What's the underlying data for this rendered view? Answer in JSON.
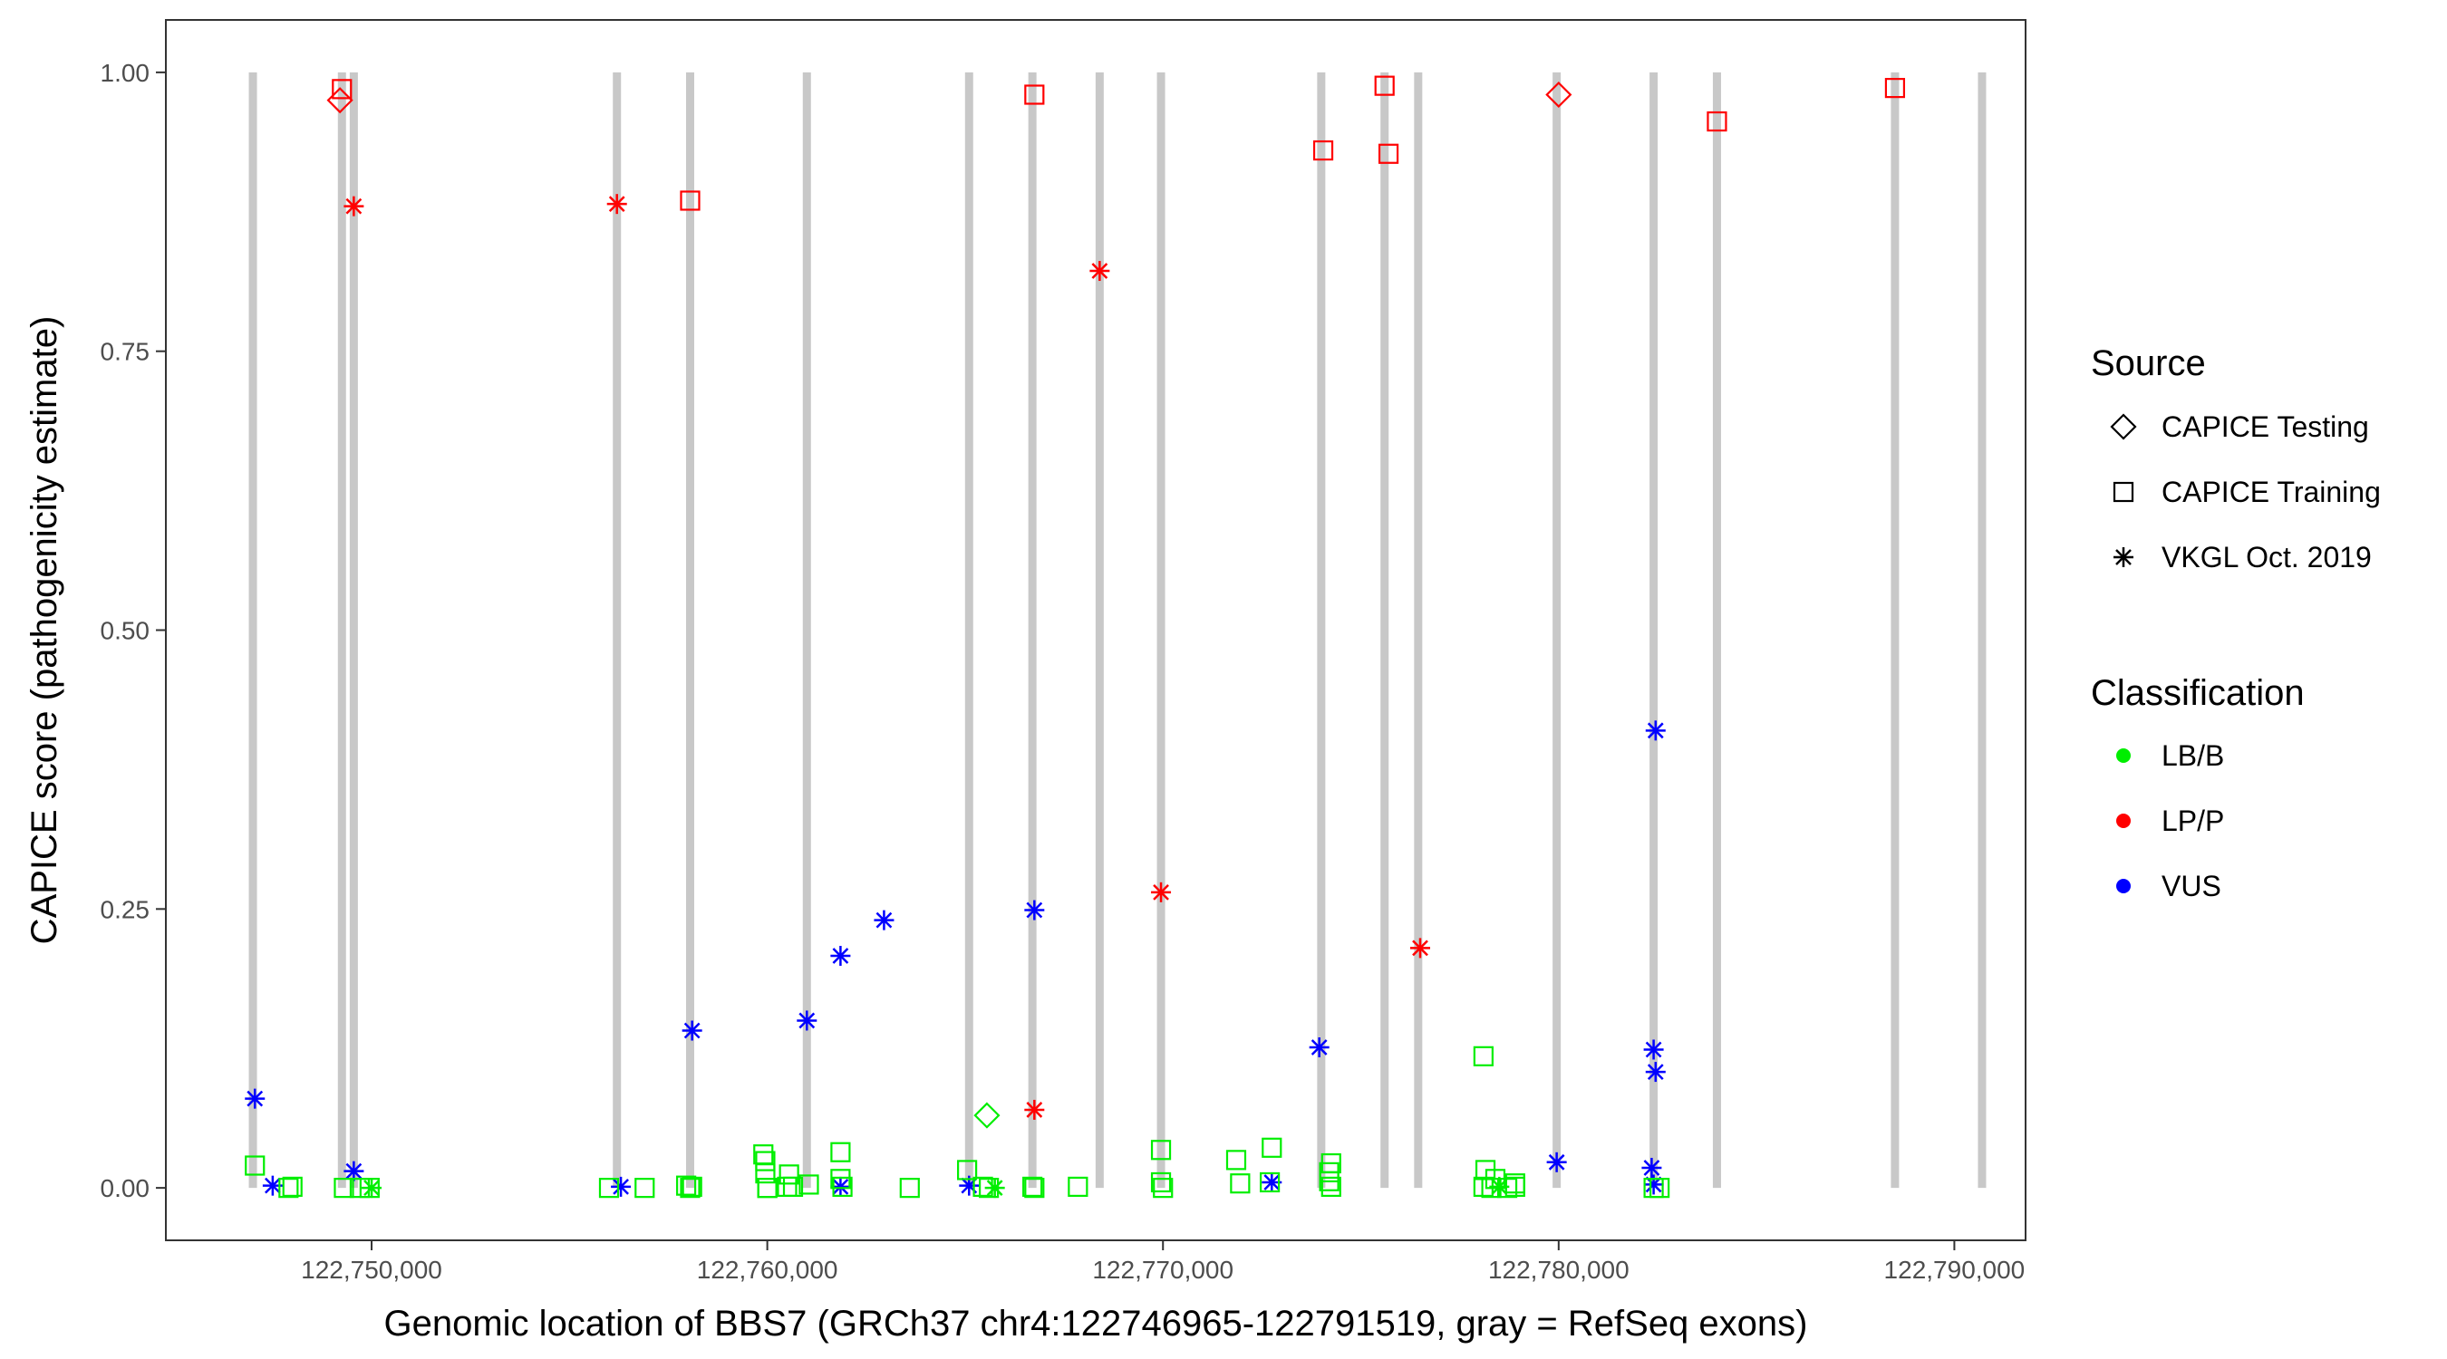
{
  "chart_data": {
    "type": "scatter",
    "xlabel": "Genomic location of BBS7 (GRCh37 chr4:122746965-122791519, gray = RefSeq exons)",
    "ylabel": "CAPICE score (pathogenicity estimate)",
    "xlim": [
      122744800,
      122791800
    ],
    "ylim": [
      -0.047,
      1.047
    ],
    "x_ticks": [
      {
        "value": 122750000,
        "label": "122,750,000"
      },
      {
        "value": 122760000,
        "label": "122,760,000"
      },
      {
        "value": 122770000,
        "label": "122,770,000"
      },
      {
        "value": 122780000,
        "label": "122,780,000"
      },
      {
        "value": 122790000,
        "label": "122,790,000"
      }
    ],
    "y_ticks": [
      {
        "value": 0.0,
        "label": "0.00"
      },
      {
        "value": 0.25,
        "label": "0.25"
      },
      {
        "value": 0.5,
        "label": "0.50"
      },
      {
        "value": 0.75,
        "label": "0.75"
      },
      {
        "value": 1.0,
        "label": "1.00"
      }
    ],
    "exons": [
      122747000,
      122749250,
      122749550,
      122756200,
      122758050,
      122761000,
      122765100,
      122766700,
      122768400,
      122769950,
      122774000,
      122775600,
      122776450,
      122779950,
      122782400,
      122784000,
      122788500,
      122790700
    ],
    "grid": false,
    "legend_position": "right",
    "legends": [
      {
        "title": "Source",
        "items": [
          {
            "label": "CAPICE Testing",
            "shape": "diamond"
          },
          {
            "label": "CAPICE Training",
            "shape": "square"
          },
          {
            "label": "VKGL Oct. 2019",
            "shape": "asterisk"
          }
        ]
      },
      {
        "title": "Classification",
        "items": [
          {
            "label": "LB/B",
            "color": "#00ee00"
          },
          {
            "label": "LP/P",
            "color": "#ff0000"
          },
          {
            "label": "VUS",
            "color": "#0000ff"
          }
        ]
      }
    ],
    "colors": {
      "LB/B": "#00ee00",
      "LP/P": "#ff0000",
      "VUS": "#0000ff",
      "exon": "#c8c8c8"
    },
    "points": [
      {
        "x": 122749250,
        "y": 0.985,
        "source": "CAPICE Training",
        "class": "LP/P"
      },
      {
        "x": 122749200,
        "y": 0.975,
        "source": "CAPICE Testing",
        "class": "LP/P"
      },
      {
        "x": 122749550,
        "y": 0.88,
        "source": "VKGL Oct. 2019",
        "class": "LP/P"
      },
      {
        "x": 122756200,
        "y": 0.882,
        "source": "VKGL Oct. 2019",
        "class": "LP/P"
      },
      {
        "x": 122758050,
        "y": 0.885,
        "source": "CAPICE Training",
        "class": "LP/P"
      },
      {
        "x": 122766750,
        "y": 0.98,
        "source": "CAPICE Training",
        "class": "LP/P"
      },
      {
        "x": 122768400,
        "y": 0.822,
        "source": "VKGL Oct. 2019",
        "class": "LP/P"
      },
      {
        "x": 122774050,
        "y": 0.93,
        "source": "CAPICE Training",
        "class": "LP/P"
      },
      {
        "x": 122775600,
        "y": 0.988,
        "source": "CAPICE Training",
        "class": "LP/P"
      },
      {
        "x": 122775700,
        "y": 0.927,
        "source": "CAPICE Training",
        "class": "LP/P"
      },
      {
        "x": 122780000,
        "y": 0.98,
        "source": "CAPICE Testing",
        "class": "LP/P"
      },
      {
        "x": 122784000,
        "y": 0.956,
        "source": "CAPICE Training",
        "class": "LP/P"
      },
      {
        "x": 122788500,
        "y": 0.986,
        "source": "CAPICE Training",
        "class": "LP/P"
      },
      {
        "x": 122769950,
        "y": 0.265,
        "source": "VKGL Oct. 2019",
        "class": "LP/P"
      },
      {
        "x": 122776500,
        "y": 0.215,
        "source": "VKGL Oct. 2019",
        "class": "LP/P"
      },
      {
        "x": 122766750,
        "y": 0.07,
        "source": "VKGL Oct. 2019",
        "class": "LP/P"
      },
      {
        "x": 122782450,
        "y": 0.41,
        "source": "VKGL Oct. 2019",
        "class": "VUS"
      },
      {
        "x": 122762950,
        "y": 0.24,
        "source": "VKGL Oct. 2019",
        "class": "VUS"
      },
      {
        "x": 122766750,
        "y": 0.249,
        "source": "VKGL Oct. 2019",
        "class": "VUS"
      },
      {
        "x": 122761850,
        "y": 0.208,
        "source": "VKGL Oct. 2019",
        "class": "VUS"
      },
      {
        "x": 122761000,
        "y": 0.15,
        "source": "VKGL Oct. 2019",
        "class": "VUS"
      },
      {
        "x": 122758100,
        "y": 0.141,
        "source": "VKGL Oct. 2019",
        "class": "VUS"
      },
      {
        "x": 122773950,
        "y": 0.126,
        "source": "VKGL Oct. 2019",
        "class": "VUS"
      },
      {
        "x": 122782400,
        "y": 0.124,
        "source": "VKGL Oct. 2019",
        "class": "VUS"
      },
      {
        "x": 122782450,
        "y": 0.104,
        "source": "VKGL Oct. 2019",
        "class": "VUS"
      },
      {
        "x": 122747050,
        "y": 0.08,
        "source": "VKGL Oct. 2019",
        "class": "VUS"
      },
      {
        "x": 122749550,
        "y": 0.015,
        "source": "VKGL Oct. 2019",
        "class": "VUS"
      },
      {
        "x": 122747500,
        "y": 0.002,
        "source": "VKGL Oct. 2019",
        "class": "VUS"
      },
      {
        "x": 122756300,
        "y": 0.001,
        "source": "VKGL Oct. 2019",
        "class": "VUS"
      },
      {
        "x": 122761850,
        "y": 0.001,
        "source": "VKGL Oct. 2019",
        "class": "VUS"
      },
      {
        "x": 122765100,
        "y": 0.002,
        "source": "VKGL Oct. 2019",
        "class": "VUS"
      },
      {
        "x": 122772750,
        "y": 0.005,
        "source": "VKGL Oct. 2019",
        "class": "VUS"
      },
      {
        "x": 122779950,
        "y": 0.023,
        "source": "VKGL Oct. 2019",
        "class": "VUS"
      },
      {
        "x": 122782350,
        "y": 0.018,
        "source": "VKGL Oct. 2019",
        "class": "VUS"
      },
      {
        "x": 122782400,
        "y": 0.003,
        "source": "VKGL Oct. 2019",
        "class": "VUS"
      },
      {
        "x": 122778100,
        "y": 0.118,
        "source": "CAPICE Training",
        "class": "LB/B"
      },
      {
        "x": 122765550,
        "y": 0.065,
        "source": "CAPICE Testing",
        "class": "LB/B"
      },
      {
        "x": 122747050,
        "y": 0.02,
        "source": "CAPICE Training",
        "class": "LB/B"
      },
      {
        "x": 122747900,
        "y": 0.0,
        "source": "CAPICE Training",
        "class": "LB/B"
      },
      {
        "x": 122748000,
        "y": 0.001,
        "source": "CAPICE Training",
        "class": "LB/B"
      },
      {
        "x": 122749300,
        "y": 0.0,
        "source": "CAPICE Training",
        "class": "LB/B"
      },
      {
        "x": 122749700,
        "y": 0.0,
        "source": "CAPICE Training",
        "class": "LB/B"
      },
      {
        "x": 122750000,
        "y": 0.0,
        "source": "VKGL Oct. 2019",
        "class": "LB/B"
      },
      {
        "x": 122749950,
        "y": 0.0,
        "source": "CAPICE Training",
        "class": "LB/B"
      },
      {
        "x": 122756000,
        "y": 0.0,
        "source": "CAPICE Training",
        "class": "LB/B"
      },
      {
        "x": 122756900,
        "y": 0.0,
        "source": "CAPICE Training",
        "class": "LB/B"
      },
      {
        "x": 122757950,
        "y": 0.002,
        "source": "CAPICE Training",
        "class": "LB/B"
      },
      {
        "x": 122758050,
        "y": 0.0,
        "source": "CAPICE Training",
        "class": "LB/B"
      },
      {
        "x": 122758100,
        "y": 0.001,
        "source": "CAPICE Training",
        "class": "LB/B"
      },
      {
        "x": 122760000,
        "y": 0.0,
        "source": "CAPICE Training",
        "class": "LB/B"
      },
      {
        "x": 122759900,
        "y": 0.03,
        "source": "CAPICE Training",
        "class": "LB/B"
      },
      {
        "x": 122759950,
        "y": 0.024,
        "source": "CAPICE Training",
        "class": "LB/B"
      },
      {
        "x": 122759950,
        "y": 0.013,
        "source": "CAPICE Training",
        "class": "LB/B"
      },
      {
        "x": 122760000,
        "y": 0.0,
        "source": "CAPICE Training",
        "class": "LB/B"
      },
      {
        "x": 122760550,
        "y": 0.012,
        "source": "CAPICE Training",
        "class": "LB/B"
      },
      {
        "x": 122760500,
        "y": 0.001,
        "source": "CAPICE Training",
        "class": "LB/B"
      },
      {
        "x": 122760650,
        "y": 0.001,
        "source": "CAPICE Training",
        "class": "LB/B"
      },
      {
        "x": 122761050,
        "y": 0.003,
        "source": "CAPICE Training",
        "class": "LB/B"
      },
      {
        "x": 122761850,
        "y": 0.032,
        "source": "CAPICE Training",
        "class": "LB/B"
      },
      {
        "x": 122761850,
        "y": 0.008,
        "source": "CAPICE Training",
        "class": "LB/B"
      },
      {
        "x": 122761900,
        "y": 0.001,
        "source": "CAPICE Training",
        "class": "LB/B"
      },
      {
        "x": 122763600,
        "y": 0.0,
        "source": "CAPICE Training",
        "class": "LB/B"
      },
      {
        "x": 122765050,
        "y": 0.016,
        "source": "CAPICE Training",
        "class": "LB/B"
      },
      {
        "x": 122765450,
        "y": 0.001,
        "source": "CAPICE Training",
        "class": "LB/B"
      },
      {
        "x": 122765600,
        "y": 0.0,
        "source": "CAPICE Training",
        "class": "LB/B"
      },
      {
        "x": 122765750,
        "y": 0.0,
        "source": "VKGL Oct. 2019",
        "class": "LB/B"
      },
      {
        "x": 122766700,
        "y": 0.001,
        "source": "CAPICE Training",
        "class": "LB/B"
      },
      {
        "x": 122766750,
        "y": 0.0,
        "source": "CAPICE Training",
        "class": "LB/B"
      },
      {
        "x": 122767850,
        "y": 0.001,
        "source": "CAPICE Training",
        "class": "LB/B"
      },
      {
        "x": 122769950,
        "y": 0.034,
        "source": "CAPICE Training",
        "class": "LB/B"
      },
      {
        "x": 122769950,
        "y": 0.005,
        "source": "CAPICE Training",
        "class": "LB/B"
      },
      {
        "x": 122770000,
        "y": 0.0,
        "source": "CAPICE Training",
        "class": "LB/B"
      },
      {
        "x": 122771850,
        "y": 0.025,
        "source": "CAPICE Training",
        "class": "LB/B"
      },
      {
        "x": 122771950,
        "y": 0.004,
        "source": "CAPICE Training",
        "class": "LB/B"
      },
      {
        "x": 122772750,
        "y": 0.036,
        "source": "CAPICE Training",
        "class": "LB/B"
      },
      {
        "x": 122772700,
        "y": 0.005,
        "source": "CAPICE Training",
        "class": "LB/B"
      },
      {
        "x": 122774250,
        "y": 0.022,
        "source": "CAPICE Training",
        "class": "LB/B"
      },
      {
        "x": 122774200,
        "y": 0.014,
        "source": "CAPICE Training",
        "class": "LB/B"
      },
      {
        "x": 122774200,
        "y": 0.006,
        "source": "CAPICE Training",
        "class": "LB/B"
      },
      {
        "x": 122774250,
        "y": 0.001,
        "source": "CAPICE Training",
        "class": "LB/B"
      },
      {
        "x": 122778150,
        "y": 0.016,
        "source": "CAPICE Training",
        "class": "LB/B"
      },
      {
        "x": 122778400,
        "y": 0.008,
        "source": "CAPICE Training",
        "class": "LB/B"
      },
      {
        "x": 122778100,
        "y": 0.001,
        "source": "CAPICE Training",
        "class": "LB/B"
      },
      {
        "x": 122778300,
        "y": 0.0,
        "source": "CAPICE Training",
        "class": "LB/B"
      },
      {
        "x": 122778500,
        "y": 0.001,
        "source": "VKGL Oct. 2019",
        "class": "LB/B"
      },
      {
        "x": 122778700,
        "y": 0.0,
        "source": "CAPICE Training",
        "class": "LB/B"
      },
      {
        "x": 122778900,
        "y": 0.001,
        "source": "CAPICE Training",
        "class": "LB/B"
      },
      {
        "x": 122778900,
        "y": 0.004,
        "source": "CAPICE Training",
        "class": "LB/B"
      },
      {
        "x": 122782400,
        "y": 0.0,
        "source": "CAPICE Training",
        "class": "LB/B"
      },
      {
        "x": 122782550,
        "y": 0.0,
        "source": "CAPICE Training",
        "class": "LB/B"
      }
    ]
  }
}
